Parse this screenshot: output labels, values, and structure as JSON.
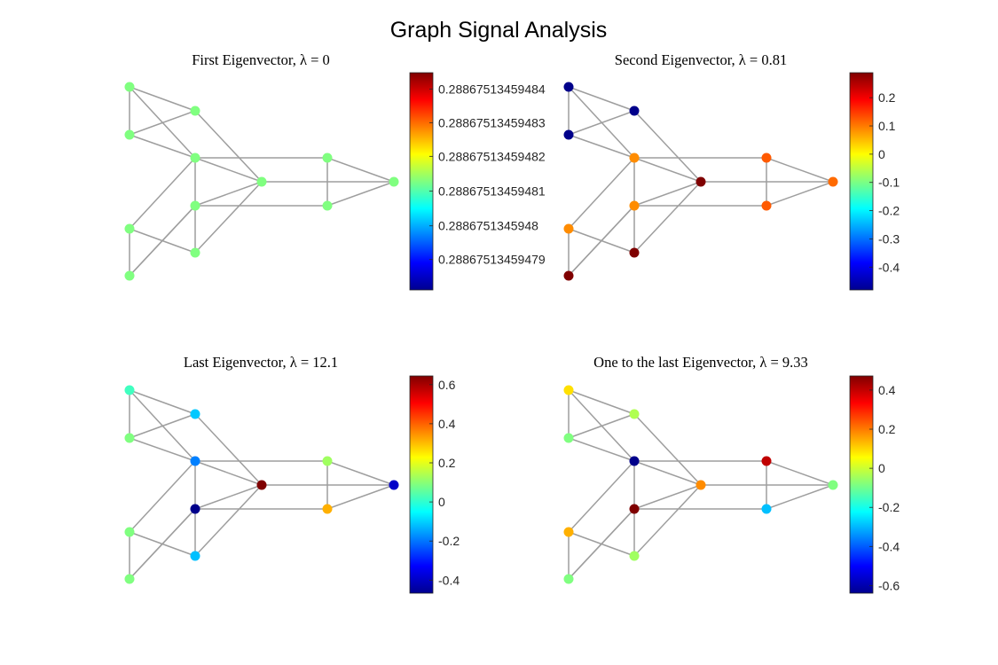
{
  "figure_title": "Graph Signal Analysis",
  "chart_data": [
    {
      "type": "graph",
      "title": "First Eigenvector, λ = 0",
      "colorbar_ticks": [
        "0.28867513459479",
        "0.2886751345948",
        "0.28867513459481",
        "0.28867513459482",
        "0.28867513459483",
        "0.28867513459484"
      ],
      "colorbar_fracs": [
        0.14,
        0.295,
        0.455,
        0.615,
        0.77,
        0.925
      ],
      "node_colors": [
        "#80ff80",
        "#80ff80",
        "#80ff80",
        "#80ff80",
        "#80ff80",
        "#80ff80",
        "#80ff80",
        "#80ff80",
        "#80ff80",
        "#80ff80",
        "#80ff80",
        "#80ff80"
      ]
    },
    {
      "type": "graph",
      "title": "Second Eigenvector, λ = 0.81",
      "colorbar_ticks": [
        "-0.4",
        "-0.3",
        "-0.2",
        "-0.1",
        "0",
        "0.1",
        "0.2"
      ],
      "colorbar_fracs": [
        0.105,
        0.235,
        0.365,
        0.495,
        0.625,
        0.755,
        0.885
      ],
      "node_colors": [
        "#00008b",
        "#00008b",
        "#00008b",
        "#ff8c00",
        "#ff8c00",
        "#ff8c00",
        "#7f0000",
        "#7f0000",
        "#7f0000",
        "#ff5a00",
        "#ff5a00",
        "#ff6a00"
      ]
    },
    {
      "type": "graph",
      "title": "Last Eigenvector, λ = 12.1",
      "colorbar_ticks": [
        "-0.4",
        "-0.2",
        "0",
        "0.2",
        "0.4",
        "0.6"
      ],
      "colorbar_fracs": [
        0.06,
        0.24,
        0.42,
        0.6,
        0.78,
        0.96
      ],
      "node_colors": [
        "#40ffc0",
        "#00c8ff",
        "#80ff80",
        "#0080ff",
        "#00008b",
        "#80ff80",
        "#00c0ff",
        "#80ff80",
        "#7f0000",
        "#a0ff60",
        "#ffb000",
        "#0000c8"
      ]
    },
    {
      "type": "graph",
      "title": "One to the last Eigenvector, λ = 9.33",
      "colorbar_ticks": [
        "-0.6",
        "-0.4",
        "-0.2",
        "0",
        "0.2",
        "0.4"
      ],
      "colorbar_fracs": [
        0.035,
        0.215,
        0.395,
        0.575,
        0.755,
        0.935
      ],
      "node_colors": [
        "#ffe000",
        "#b0ff50",
        "#80ff80",
        "#00008b",
        "#7f0000",
        "#ffb000",
        "#a0ff60",
        "#80ff80",
        "#ff8c00",
        "#c00000",
        "#00c0ff",
        "#80ff80"
      ]
    }
  ]
}
